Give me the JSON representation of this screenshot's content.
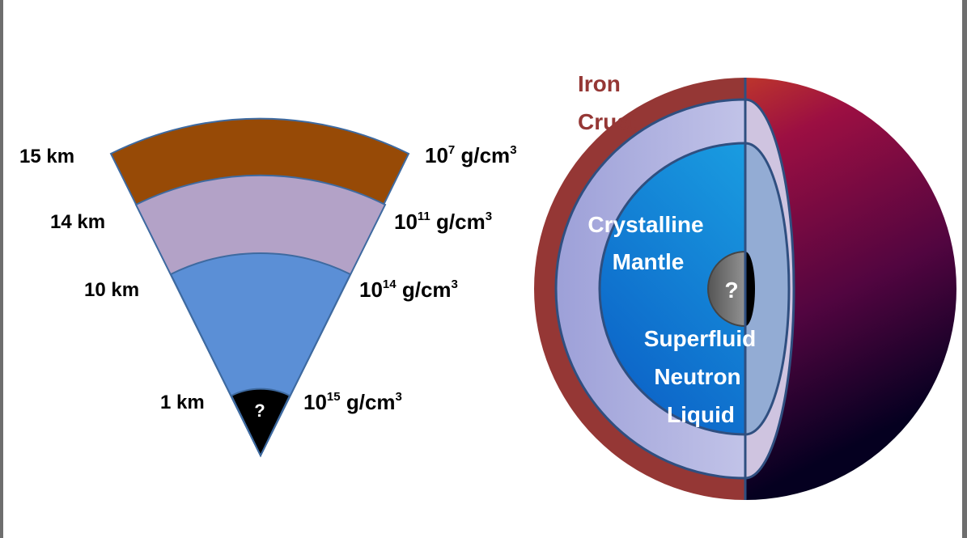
{
  "wedge": {
    "radius_labels": [
      "15 km",
      "14 km",
      "10 km",
      "1 km"
    ],
    "density_bases": [
      "10",
      "10",
      "10",
      "10"
    ],
    "density_exponents": [
      "7",
      "11",
      "14",
      "15"
    ],
    "density_units": [
      " g/cm",
      " g/cm",
      " g/cm",
      " g/cm"
    ],
    "unit_exponent": "3",
    "core_mark": "?"
  },
  "sphere": {
    "iron_crust_line1": "Iron",
    "iron_crust_line2": "Crust",
    "mantle_line1": "Crystalline",
    "mantle_line2": "Mantle",
    "liquid_line1": "Superfluid",
    "liquid_line2": "Neutron",
    "liquid_line3": "Liquid",
    "core_mark": "?"
  },
  "colors": {
    "crust_brown": "#974a06",
    "inner_crust_lilac": "#b3a2c7",
    "outer_core_blue": "#5b8fd6",
    "core_black": "#000000",
    "iron_crust_red": "#953735",
    "mantle_lilac": "#c9c3e8",
    "liquid_blue": "#1f97e0"
  }
}
